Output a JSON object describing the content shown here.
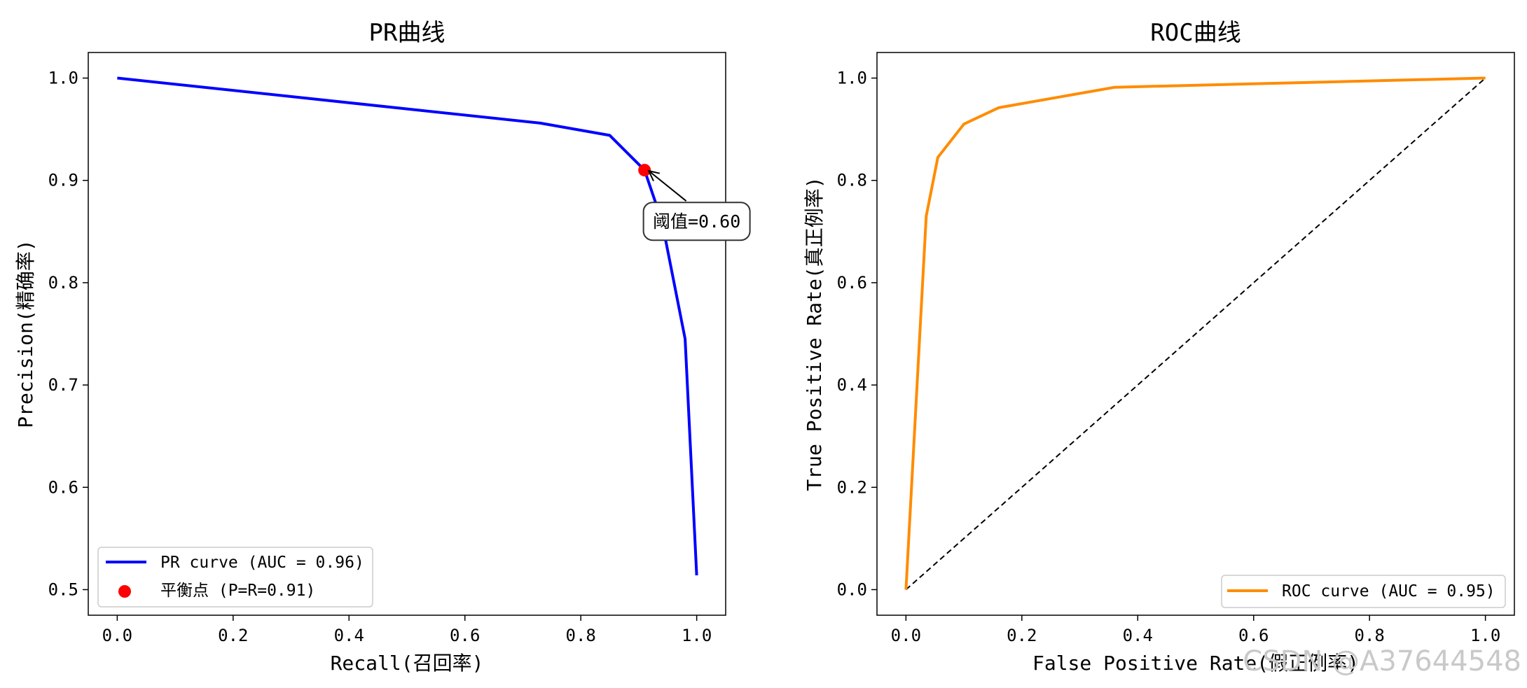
{
  "chart_data": [
    {
      "type": "line",
      "title": "PR曲线",
      "xlabel": "Recall(召回率)",
      "ylabel": "Precision(精确率)",
      "xlim": [
        -0.05,
        1.05
      ],
      "ylim": [
        0.475,
        1.025
      ],
      "xticks": [
        0.0,
        0.2,
        0.4,
        0.6,
        0.8,
        1.0
      ],
      "xtick_labels": [
        "0.0",
        "0.2",
        "0.4",
        "0.6",
        "0.8",
        "1.0"
      ],
      "yticks": [
        0.5,
        0.6,
        0.7,
        0.8,
        0.9,
        1.0
      ],
      "ytick_labels": [
        "0.5",
        "0.6",
        "0.7",
        "0.8",
        "0.9",
        "1.0"
      ],
      "grid": false,
      "legend_position": "lower-left",
      "series": [
        {
          "name": "PR curve (AUC = 0.96)",
          "color": "#0000ff",
          "x": [
            0.0,
            0.73,
            0.85,
            0.91,
            0.94,
            0.98,
            1.0
          ],
          "y": [
            1.0,
            0.956,
            0.944,
            0.91,
            0.86,
            0.745,
            0.514
          ]
        }
      ],
      "points": [
        {
          "name": "平衡点 (P=R=0.91)",
          "color": "#ff0000",
          "x": 0.91,
          "y": 0.91
        }
      ],
      "annotations": [
        {
          "text": "阈值=0.60",
          "x": 0.91,
          "y": 0.91,
          "text_x": 1.0,
          "text_y": 0.86
        }
      ]
    },
    {
      "type": "line",
      "title": "ROC曲线",
      "xlabel": "False Positive Rate(假正例率)",
      "ylabel": "True Positive Rate(真正例率)",
      "xlim": [
        -0.05,
        1.05
      ],
      "ylim": [
        -0.05,
        1.05
      ],
      "xticks": [
        0.0,
        0.2,
        0.4,
        0.6,
        0.8,
        1.0
      ],
      "xtick_labels": [
        "0.0",
        "0.2",
        "0.4",
        "0.6",
        "0.8",
        "1.0"
      ],
      "yticks": [
        0.0,
        0.2,
        0.4,
        0.6,
        0.8,
        1.0
      ],
      "ytick_labels": [
        "0.0",
        "0.2",
        "0.4",
        "0.6",
        "0.8",
        "1.0"
      ],
      "grid": false,
      "legend_position": "lower-right",
      "series": [
        {
          "name": "ROC curve (AUC = 0.95)",
          "color": "#ff8c00",
          "x": [
            0.0,
            0.035,
            0.055,
            0.1,
            0.16,
            0.36,
            1.0
          ],
          "y": [
            0.0,
            0.73,
            0.845,
            0.91,
            0.942,
            0.982,
            1.0
          ]
        }
      ],
      "reference_line": {
        "x": [
          0.0,
          1.0
        ],
        "y": [
          0.0,
          1.0
        ],
        "color": "#000000",
        "style": "dashed"
      }
    }
  ],
  "watermark": "CSDN @A37644548"
}
